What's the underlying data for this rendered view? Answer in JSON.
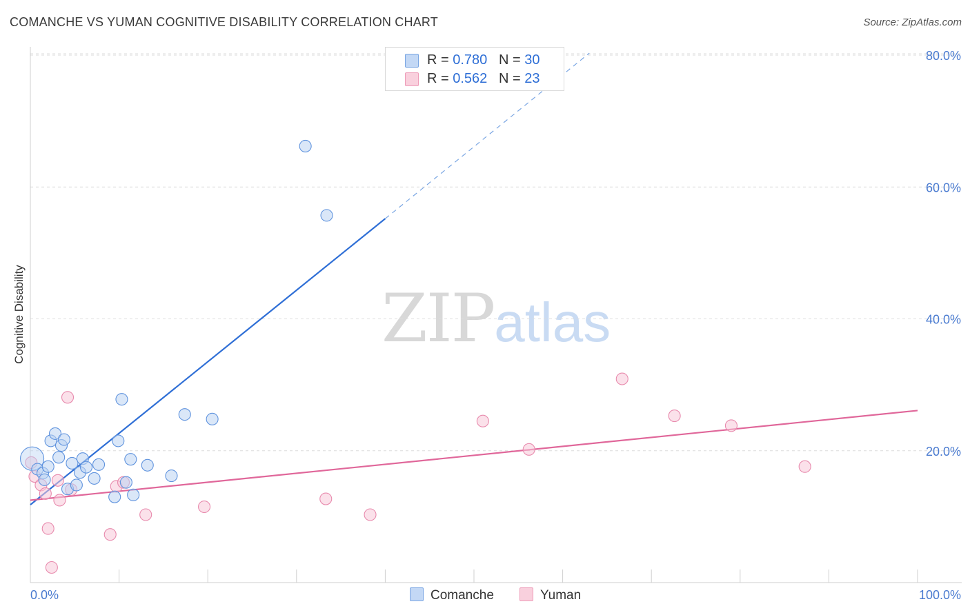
{
  "header": {
    "title": "COMANCHE VS YUMAN COGNITIVE DISABILITY CORRELATION CHART",
    "source": "Source: ZipAtlas.com"
  },
  "watermark": {
    "zip": "ZIP",
    "atlas": "atlas"
  },
  "legend": {
    "rows": [
      {
        "r_label": "R = ",
        "r_value": "0.780",
        "n_label": "N = ",
        "n_value": "30",
        "color": "#aac8f0"
      },
      {
        "r_label": "R = ",
        "r_value": "0.562",
        "n_label": "N = ",
        "n_value": "23",
        "color": "#f6bfd0"
      }
    ]
  },
  "bottom_legend": {
    "comanche": "Comanche",
    "yuman": "Yuman"
  },
  "chart_data": {
    "type": "scatter",
    "title": "COMANCHE VS YUMAN COGNITIVE DISABILITY CORRELATION CHART",
    "xlabel": "",
    "ylabel": "Cognitive Disability",
    "xlim": [
      0,
      100
    ],
    "ylim": [
      0,
      80
    ],
    "x_tick_labels": [
      "0.0%",
      "100.0%"
    ],
    "y_ticks": [
      20,
      40,
      60,
      80
    ],
    "y_tick_labels": [
      "20.0%",
      "40.0%",
      "60.0%",
      "80.0%"
    ],
    "grid": true,
    "legend_position": "top-center",
    "series": [
      {
        "name": "Comanche",
        "color": "#4a82d8",
        "fill": "#aac8f0",
        "r": 0.78,
        "n": 30,
        "trend": {
          "x": [
            0,
            40
          ],
          "y": [
            11.8,
            55.2
          ],
          "dashed_to": [
            63,
            80.3
          ]
        },
        "points": [
          {
            "x": 0.2,
            "y": 18.8,
            "big": true
          },
          {
            "x": 0.8,
            "y": 17.2
          },
          {
            "x": 1.4,
            "y": 16.6
          },
          {
            "x": 1.6,
            "y": 15.6
          },
          {
            "x": 2.0,
            "y": 17.6
          },
          {
            "x": 2.3,
            "y": 21.5
          },
          {
            "x": 2.8,
            "y": 22.6
          },
          {
            "x": 3.2,
            "y": 19.0
          },
          {
            "x": 3.5,
            "y": 20.8
          },
          {
            "x": 3.8,
            "y": 21.7
          },
          {
            "x": 4.2,
            "y": 14.2
          },
          {
            "x": 4.7,
            "y": 18.1
          },
          {
            "x": 5.2,
            "y": 14.8
          },
          {
            "x": 5.6,
            "y": 16.7
          },
          {
            "x": 5.9,
            "y": 18.8
          },
          {
            "x": 6.3,
            "y": 17.5
          },
          {
            "x": 7.2,
            "y": 15.8
          },
          {
            "x": 7.7,
            "y": 17.9
          },
          {
            "x": 9.5,
            "y": 13.0
          },
          {
            "x": 9.9,
            "y": 21.5
          },
          {
            "x": 10.3,
            "y": 27.8
          },
          {
            "x": 10.8,
            "y": 15.2
          },
          {
            "x": 11.3,
            "y": 18.7
          },
          {
            "x": 11.6,
            "y": 13.3
          },
          {
            "x": 13.2,
            "y": 17.8
          },
          {
            "x": 15.9,
            "y": 16.2
          },
          {
            "x": 17.4,
            "y": 25.5
          },
          {
            "x": 20.5,
            "y": 24.8
          },
          {
            "x": 31.0,
            "y": 66.2
          },
          {
            "x": 33.4,
            "y": 55.7
          }
        ]
      },
      {
        "name": "Yuman",
        "color": "#e06f9c",
        "fill": "#f6bfd0",
        "r": 0.562,
        "n": 23,
        "trend": {
          "x": [
            0,
            100
          ],
          "y": [
            12.5,
            26.1
          ]
        },
        "points": [
          {
            "x": 0.1,
            "y": 18.2
          },
          {
            "x": 0.5,
            "y": 16.1
          },
          {
            "x": 1.2,
            "y": 14.8
          },
          {
            "x": 1.7,
            "y": 13.5
          },
          {
            "x": 2.0,
            "y": 8.2
          },
          {
            "x": 2.4,
            "y": 2.3
          },
          {
            "x": 3.1,
            "y": 15.5
          },
          {
            "x": 3.3,
            "y": 12.5
          },
          {
            "x": 4.2,
            "y": 28.1
          },
          {
            "x": 4.6,
            "y": 14.1
          },
          {
            "x": 9.0,
            "y": 7.3
          },
          {
            "x": 9.7,
            "y": 14.6
          },
          {
            "x": 10.5,
            "y": 15.2
          },
          {
            "x": 13.0,
            "y": 10.3
          },
          {
            "x": 19.6,
            "y": 11.5
          },
          {
            "x": 33.3,
            "y": 12.7
          },
          {
            "x": 38.3,
            "y": 10.3
          },
          {
            "x": 51.0,
            "y": 24.5
          },
          {
            "x": 56.2,
            "y": 20.2
          },
          {
            "x": 66.7,
            "y": 30.9
          },
          {
            "x": 72.6,
            "y": 25.3
          },
          {
            "x": 79.0,
            "y": 23.8
          },
          {
            "x": 87.3,
            "y": 17.6
          }
        ]
      }
    ]
  }
}
